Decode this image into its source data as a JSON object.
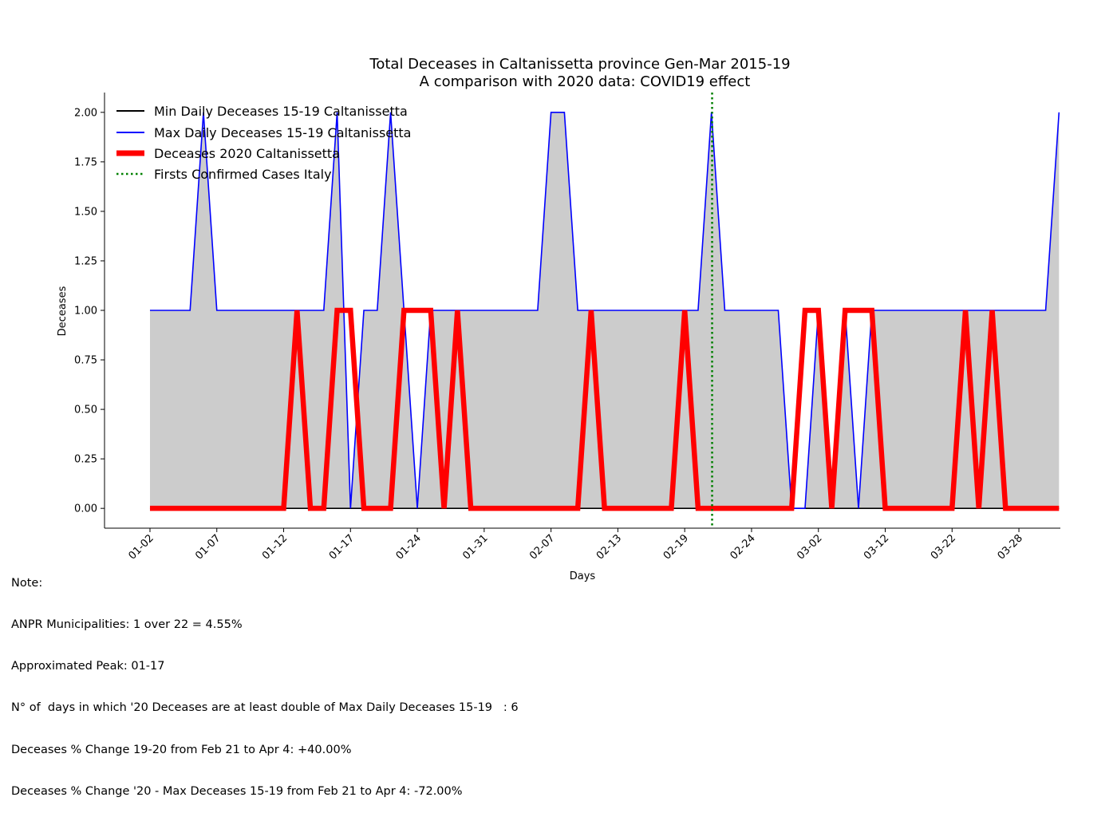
{
  "chart_data": {
    "type": "line",
    "title": "Total Deceases in Caltanissetta province Gen-Mar 2015-19",
    "subtitle": "A comparison with 2020 data: COVID19 effect",
    "xlabel": "Days",
    "ylabel": "Deceases",
    "ylim": [
      -0.1,
      2.1
    ],
    "y_ticks": [
      "0.00",
      "0.25",
      "0.50",
      "0.75",
      "1.00",
      "1.25",
      "1.50",
      "1.75",
      "2.00"
    ],
    "x_ticks": [
      {
        "index": 0,
        "label": "01-02"
      },
      {
        "index": 5,
        "label": "01-07"
      },
      {
        "index": 10,
        "label": "01-12"
      },
      {
        "index": 15,
        "label": "01-17"
      },
      {
        "index": 20,
        "label": "01-24"
      },
      {
        "index": 25,
        "label": "01-31"
      },
      {
        "index": 30,
        "label": "02-07"
      },
      {
        "index": 35,
        "label": "02-13"
      },
      {
        "index": 40,
        "label": "02-19"
      },
      {
        "index": 45,
        "label": "02-24"
      },
      {
        "index": 50,
        "label": "03-02"
      },
      {
        "index": 55,
        "label": "03-12"
      },
      {
        "index": 60,
        "label": "03-22"
      },
      {
        "index": 65,
        "label": "03-28"
      }
    ],
    "x_range": [
      -3.4,
      68.1
    ],
    "vline": {
      "index": 42.05,
      "name": "Firsts Confirmed Cases Italy",
      "color": "#008000"
    },
    "legend_position": "upper-left",
    "series": [
      {
        "name": "Min Daily Deceases 15-19 Caltanissetta",
        "color": "#000000",
        "values": [
          0,
          0,
          0,
          0,
          0,
          0,
          0,
          0,
          0,
          0,
          0,
          0,
          0,
          0,
          0,
          0,
          0,
          0,
          0,
          0,
          0,
          0,
          0,
          0,
          0,
          0,
          0,
          0,
          0,
          0,
          0,
          0,
          0,
          0,
          0,
          0,
          0,
          0,
          0,
          0,
          0,
          0,
          0,
          0,
          0,
          0,
          0,
          0,
          0,
          0,
          0,
          0,
          0,
          0,
          0,
          0,
          0,
          0,
          0,
          0,
          0,
          0,
          0,
          0,
          0,
          0,
          0,
          0,
          0
        ]
      },
      {
        "name": "Max Daily Deceases 15-19 Caltanissetta",
        "color": "#0000ff",
        "values": [
          1,
          1,
          1,
          1,
          2,
          1,
          1,
          1,
          1,
          1,
          1,
          1,
          1,
          1,
          2,
          0,
          1,
          1,
          2,
          1,
          0,
          1,
          1,
          1,
          1,
          1,
          1,
          1,
          1,
          1,
          2,
          2,
          1,
          1,
          1,
          1,
          1,
          1,
          1,
          1,
          1,
          1,
          2,
          1,
          1,
          1,
          1,
          1,
          0,
          0,
          1,
          0,
          1,
          0,
          1,
          1,
          1,
          1,
          1,
          1,
          1,
          1,
          1,
          1,
          1,
          1,
          1,
          1,
          2
        ]
      },
      {
        "name": "Deceases 2020 Caltanissetta",
        "color": "#ff0000",
        "values": [
          0,
          0,
          0,
          0,
          0,
          0,
          0,
          0,
          0,
          0,
          0,
          1,
          0,
          0,
          1,
          1,
          0,
          0,
          0,
          1,
          1,
          1,
          0,
          1,
          0,
          0,
          0,
          0,
          0,
          0,
          0,
          0,
          0,
          1,
          0,
          0,
          0,
          0,
          0,
          0,
          1,
          0,
          0,
          0,
          0,
          0,
          0,
          0,
          0,
          1,
          1,
          0,
          1,
          1,
          1,
          0,
          0,
          0,
          0,
          0,
          0,
          1,
          0,
          1,
          0,
          0,
          0,
          0,
          0
        ]
      }
    ]
  },
  "notes": [
    "Note:",
    "ANPR Municipalities: 1 over 22 = 4.55%",
    "Approximated Peak: 01-17",
    "N° of  days in which '20 Deceases are at least double of Max Daily Deceases 15-19   : 6",
    "Deceases % Change 19-20 from Feb 21 to Apr 4: +40.00%",
    "Deceases % Change '20 - Max Deceases 15-19 from Feb 21 to Apr 4: -72.00%"
  ]
}
